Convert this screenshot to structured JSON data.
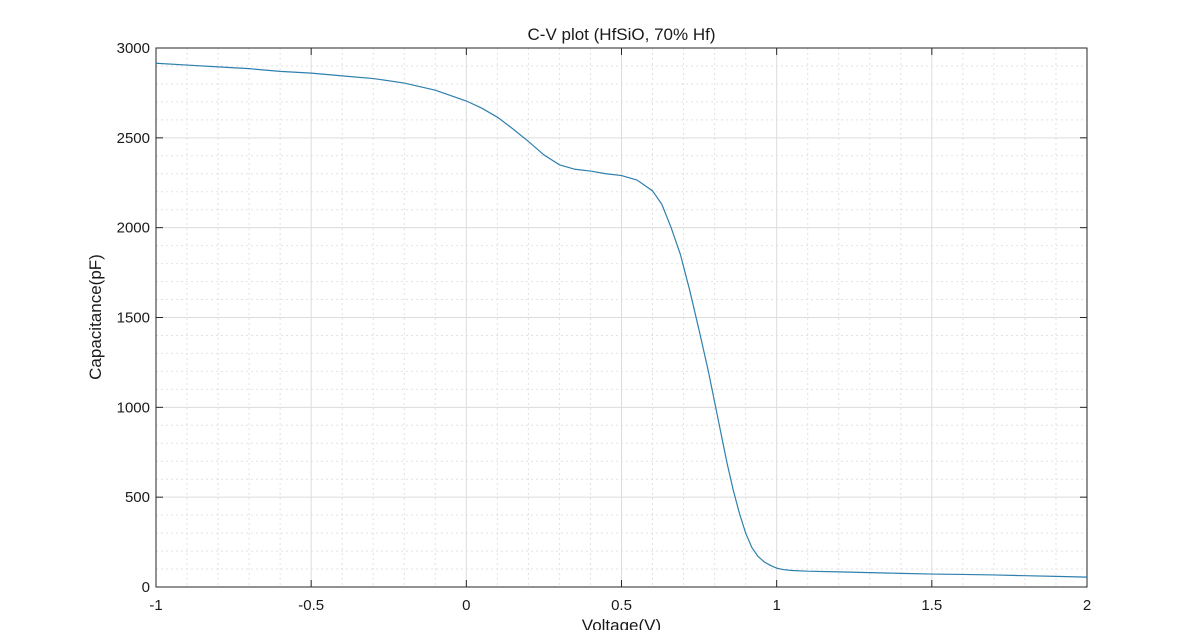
{
  "chart_data": {
    "type": "line",
    "title": "C-V plot (HfSiO, 70% Hf)",
    "xlabel": "Voltage(V)",
    "ylabel": "Capacitance(pF)",
    "xlim": [
      -1,
      2
    ],
    "ylim": [
      0,
      3000
    ],
    "xticks": [
      -1,
      -0.5,
      0,
      0.5,
      1,
      1.5,
      2
    ],
    "yticks": [
      0,
      500,
      1000,
      1500,
      2000,
      2500,
      3000
    ],
    "xtick_labels": [
      "-1",
      "-0.5",
      "0",
      "0.5",
      "1",
      "1.5",
      "2"
    ],
    "ytick_labels": [
      "0",
      "500",
      "1000",
      "1500",
      "2000",
      "2500",
      "3000"
    ],
    "grid": true,
    "minor_grid": true,
    "colors": {
      "series": "#2e7fae"
    },
    "series": [
      {
        "x": [
          -1,
          -0.9,
          -0.8,
          -0.7,
          -0.6,
          -0.5,
          -0.4,
          -0.3,
          -0.2,
          -0.1,
          0,
          0.05,
          0.1,
          0.15,
          0.2,
          0.25,
          0.3,
          0.35,
          0.4,
          0.45,
          0.5,
          0.55,
          0.6,
          0.63,
          0.66,
          0.69,
          0.72,
          0.75,
          0.78,
          0.8,
          0.82,
          0.84,
          0.86,
          0.88,
          0.9,
          0.92,
          0.94,
          0.96,
          0.98,
          1.0,
          1.02,
          1.05,
          1.1,
          1.2,
          1.3,
          1.4,
          1.5,
          1.6,
          1.7,
          1.8,
          1.9,
          2.0
        ],
        "y": [
          2915,
          2905,
          2895,
          2885,
          2870,
          2860,
          2845,
          2830,
          2805,
          2765,
          2705,
          2665,
          2615,
          2550,
          2480,
          2405,
          2350,
          2325,
          2315,
          2300,
          2290,
          2265,
          2205,
          2130,
          2000,
          1850,
          1650,
          1430,
          1200,
          1030,
          860,
          690,
          540,
          410,
          300,
          220,
          170,
          140,
          120,
          105,
          97,
          92,
          88,
          84,
          80,
          76,
          72,
          70,
          67,
          63,
          59,
          55
        ]
      }
    ]
  }
}
